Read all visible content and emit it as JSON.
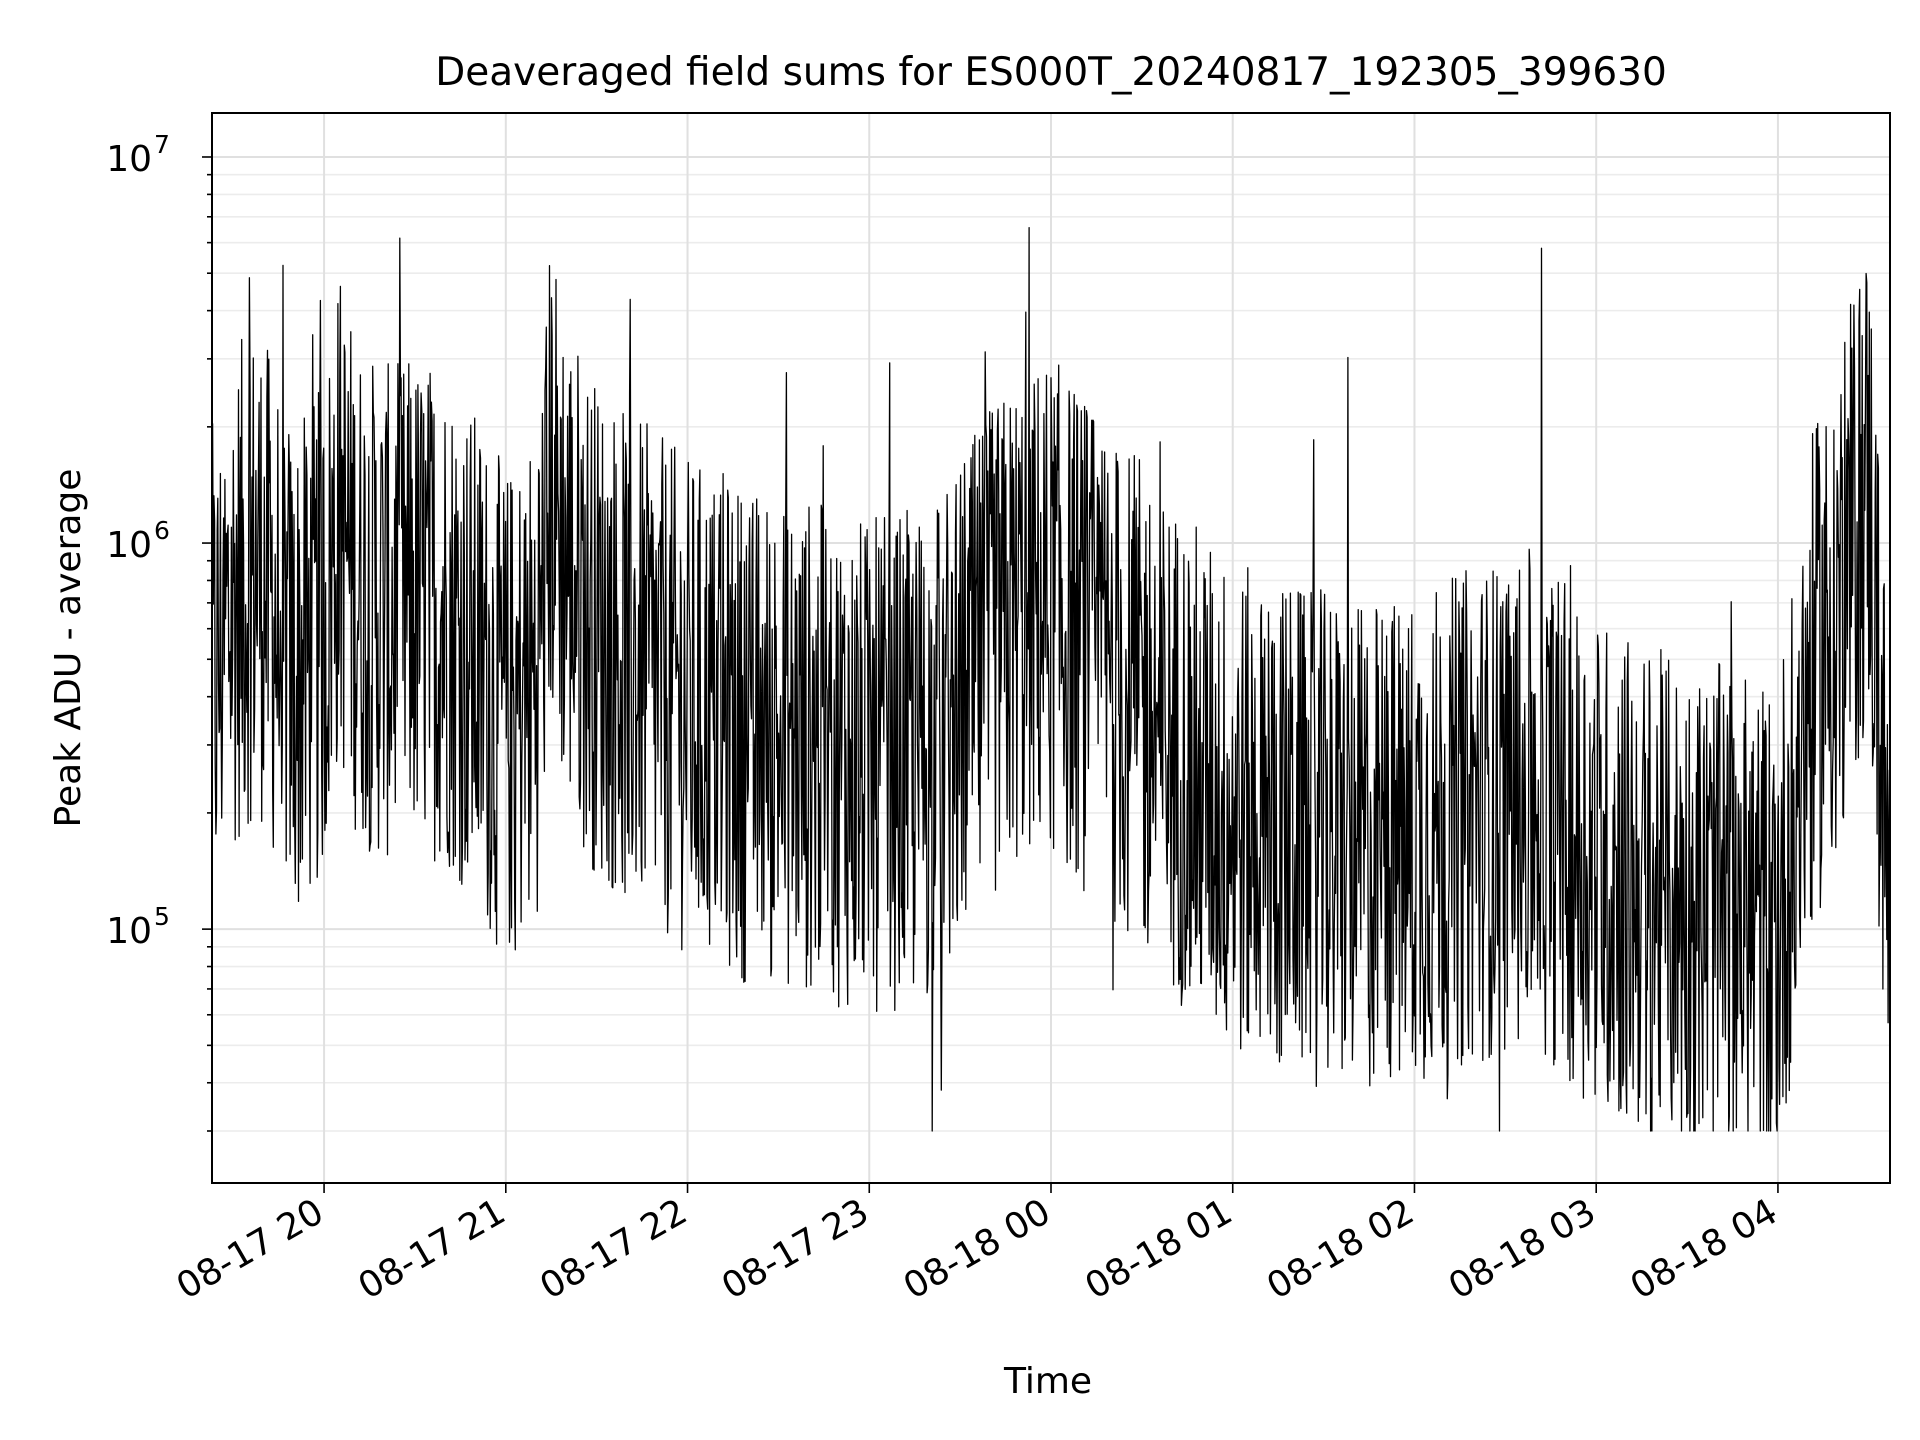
{
  "chart_data": {
    "type": "line",
    "title": "Deaveraged field sums for ES000T_20240817_192305_399630",
    "xlabel": "Time",
    "ylabel": "Peak ADU - average",
    "yscale": "log",
    "ylim": [
      22000,
      13000000
    ],
    "xlim": [
      "2024-08-17 19:23",
      "2024-08-18 04:37"
    ],
    "x_tick_labels": [
      "08-17 20",
      "08-17 21",
      "08-17 22",
      "08-17 23",
      "08-18 00",
      "08-18 01",
      "08-18 02",
      "08-18 03",
      "08-18 04"
    ],
    "y_tick_labels": [
      {
        "base": "10",
        "exp": "5"
      },
      {
        "base": "10",
        "exp": "6"
      },
      {
        "base": "10",
        "exp": "7"
      }
    ],
    "grid": true,
    "line_color": "#000000",
    "series": [
      {
        "x": [
          "2024-08-17 19:23",
          "2024-08-17 19:30",
          "2024-08-17 19:38",
          "2024-08-17 19:45",
          "2024-08-17 19:50",
          "2024-08-17 19:55",
          "2024-08-17 20:00",
          "2024-08-17 20:05",
          "2024-08-17 20:10",
          "2024-08-17 20:15",
          "2024-08-17 20:20",
          "2024-08-17 20:30",
          "2024-08-17 20:40",
          "2024-08-17 20:50",
          "2024-08-17 21:00",
          "2024-08-17 21:10",
          "2024-08-17 21:15",
          "2024-08-17 21:20",
          "2024-08-17 21:30",
          "2024-08-17 21:40",
          "2024-08-17 22:00",
          "2024-08-17 22:20",
          "2024-08-17 22:40",
          "2024-08-17 23:00",
          "2024-08-17 23:20",
          "2024-08-17 23:40",
          "2024-08-17 23:50",
          "2024-08-18 00:00",
          "2024-08-18 00:20",
          "2024-08-18 00:40",
          "2024-08-18 01:00",
          "2024-08-18 01:20",
          "2024-08-18 01:40",
          "2024-08-18 02:00",
          "2024-08-18 02:20",
          "2024-08-18 02:40",
          "2024-08-18 03:00",
          "2024-08-18 03:20",
          "2024-08-18 03:40",
          "2024-08-18 04:00",
          "2024-08-18 04:10",
          "2024-08-18 04:20",
          "2024-08-18 04:30",
          "2024-08-18 04:37"
        ],
        "y": [
          400000,
          700000,
          900000,
          600000,
          450000,
          500000,
          600000,
          1200000,
          800000,
          700000,
          650000,
          700000,
          650000,
          500000,
          350000,
          450000,
          1500000,
          900000,
          600000,
          500000,
          380000,
          320000,
          300000,
          260000,
          280000,
          500000,
          650000,
          700000,
          450000,
          300000,
          200000,
          180000,
          160000,
          170000,
          200000,
          220000,
          150000,
          120000,
          110000,
          100000,
          400000,
          700000,
          1500000,
          100000
        ]
      }
    ]
  }
}
